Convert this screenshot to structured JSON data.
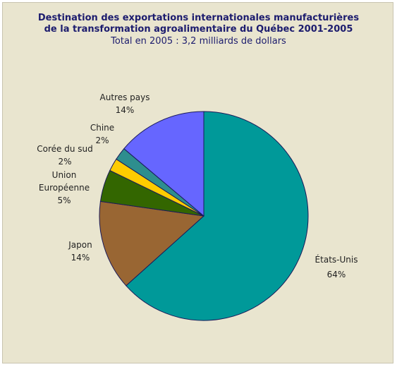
{
  "chart_data": {
    "type": "pie",
    "title": [
      "Destination des exportations internationales manufacturières",
      "de la transformation agroalimentaire du Québec 2001-2005"
    ],
    "subtitle": "Total en 2005 : 3,2 milliards de dollars",
    "categories": [
      "États-Unis",
      "Japon",
      "Union Européenne",
      "Corée du sud",
      "Chine",
      "Autres pays"
    ],
    "values": [
      64,
      14,
      5,
      2,
      2,
      14
    ],
    "value_labels": [
      "64%",
      "14%",
      "5%",
      "2%",
      "2%",
      "14%"
    ],
    "colors": [
      "#009999",
      "#996633",
      "#336600",
      "#ffcc00",
      "#2e8e8e",
      "#6666ff"
    ]
  }
}
